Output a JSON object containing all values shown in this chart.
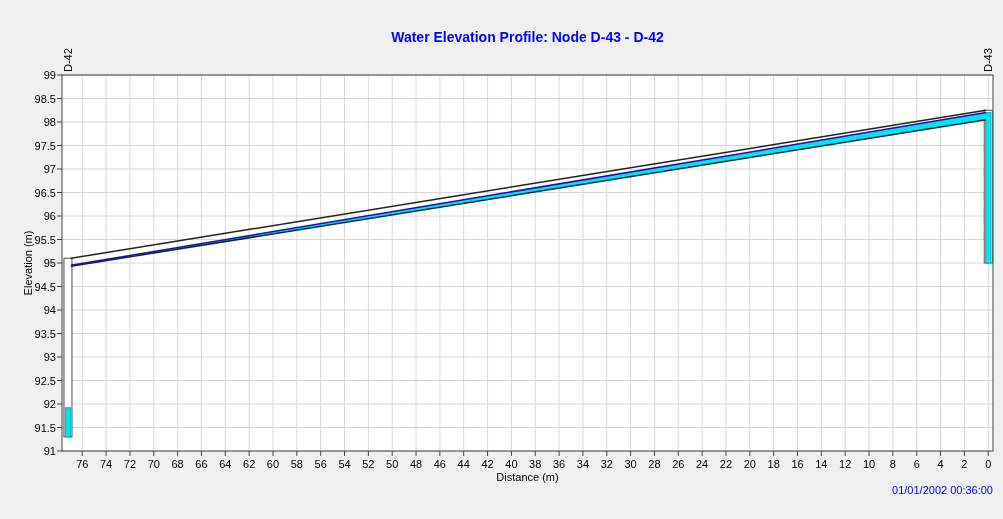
{
  "chart_data": {
    "type": "line",
    "title": "Water Elevation Profile:  Node D-43 - D-42",
    "xlabel": "Distance (m)",
    "ylabel": "Elevation (m)",
    "xlim": [
      77.7,
      -0.4
    ],
    "xticks": [
      76,
      74,
      72,
      70,
      68,
      66,
      64,
      62,
      60,
      58,
      56,
      54,
      52,
      50,
      48,
      46,
      44,
      42,
      40,
      38,
      36,
      34,
      32,
      30,
      28,
      26,
      24,
      22,
      20,
      18,
      16,
      14,
      12,
      10,
      8,
      6,
      4,
      2,
      0
    ],
    "ylim": [
      91,
      99
    ],
    "yticks": [
      91,
      91.5,
      92,
      92.5,
      93,
      93.5,
      94,
      94.5,
      95,
      95.5,
      96,
      96.5,
      97,
      97.5,
      98,
      98.5,
      99
    ],
    "grid": true,
    "marker": "none",
    "line_style": "solid",
    "series": [
      {
        "type": "bar",
        "x": [
          77.2,
          0
        ],
        "base": [
          91.3,
          95.0
        ],
        "values": [
          3.8,
          3.25
        ],
        "color": "#ffffff"
      },
      {
        "type": "bar",
        "x": [
          77.2,
          0
        ],
        "base": [
          91.3,
          95.0
        ],
        "values": [
          0.62,
          3.2
        ],
        "color": "#00e5ee"
      },
      {
        "x": [
          76.95,
          0.2
        ],
        "values": [
          94.95,
          98.2
        ],
        "lower": [
          94.93,
          98.05
        ],
        "upper": [
          94.95,
          98.2
        ],
        "color": "#1010c0"
      },
      {
        "x": [
          76.95,
          0.2
        ],
        "values": [
          95.1,
          98.25
        ],
        "color": "#202020"
      },
      {
        "x": [
          76.95,
          0.2
        ],
        "values": [
          94.93,
          98.05
        ],
        "color": "#202020"
      }
    ],
    "annotations": [
      "D-42",
      "D-43",
      "01/01/2002 00:36:00"
    ]
  }
}
